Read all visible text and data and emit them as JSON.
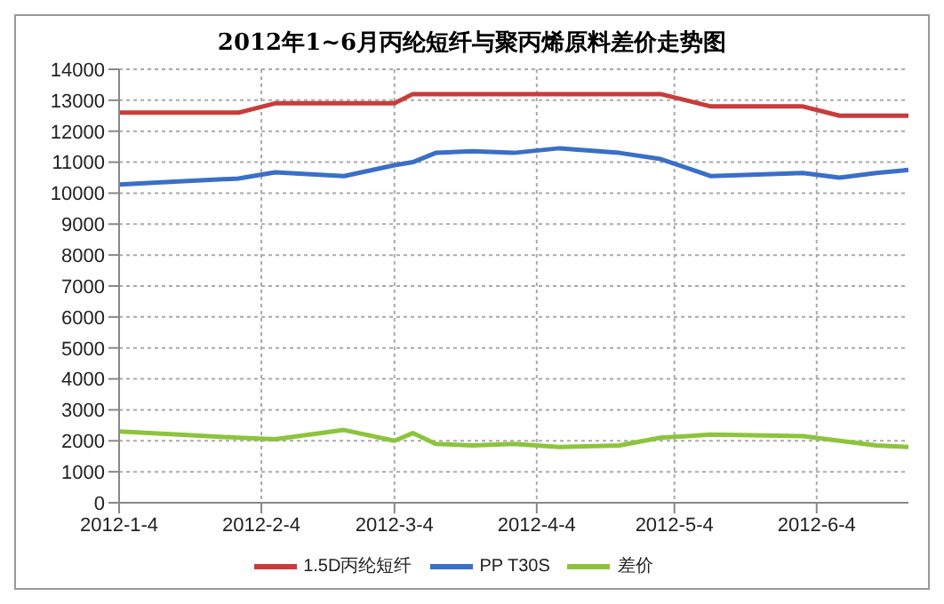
{
  "chart_data": {
    "type": "line",
    "title": "2012年1~6月丙纶短纤与聚丙烯原料差价走势图",
    "x": [
      "2012-01-04",
      "2012-01-17",
      "2012-01-30",
      "2012-02-07",
      "2012-02-22",
      "2012-03-04",
      "2012-03-08",
      "2012-03-13",
      "2012-03-21",
      "2012-03-30",
      "2012-04-09",
      "2012-04-22",
      "2012-05-01",
      "2012-05-12",
      "2012-06-01",
      "2012-06-09",
      "2012-06-17",
      "2012-06-24"
    ],
    "series": [
      {
        "name": "PP T30S",
        "color": "#3a6fc8",
        "values": [
          10280,
          10380,
          10470,
          10670,
          10550,
          10900,
          11000,
          11300,
          11350,
          11300,
          11450,
          11300,
          11100,
          10550,
          10650,
          10500,
          10650,
          10750
        ]
      },
      {
        "name": "1.5D丙纶短纤",
        "color": "#c83c3a",
        "values": [
          12600,
          12600,
          12600,
          12900,
          12900,
          12900,
          13200,
          13200,
          13200,
          13200,
          13200,
          13200,
          13200,
          12800,
          12800,
          12500,
          12500,
          12500
        ]
      },
      {
        "name": "差价",
        "color": "#8cc43c",
        "values": [
          2300,
          2200,
          2100,
          2050,
          2350,
          2000,
          2250,
          1900,
          1850,
          1900,
          1800,
          1850,
          2100,
          2200,
          2150,
          2000,
          1850,
          1800
        ]
      }
    ],
    "xlim": [
      "2012-01-04",
      "2012-06-24"
    ],
    "xticks": [
      {
        "value": "2012-01-04",
        "label": "2012-1-4"
      },
      {
        "value": "2012-02-04",
        "label": "2012-2-4"
      },
      {
        "value": "2012-03-04",
        "label": "2012-3-4"
      },
      {
        "value": "2012-04-04",
        "label": "2012-4-4"
      },
      {
        "value": "2012-05-04",
        "label": "2012-5-4"
      },
      {
        "value": "2012-06-04",
        "label": "2012-6-4"
      }
    ],
    "ylim": [
      0,
      14000
    ],
    "yticks": [
      0,
      1000,
      2000,
      3000,
      4000,
      5000,
      6000,
      7000,
      8000,
      9000,
      10000,
      11000,
      12000,
      13000,
      14000
    ],
    "grid": true,
    "legend": "bottom",
    "marker": "none",
    "line_style": "solid"
  }
}
